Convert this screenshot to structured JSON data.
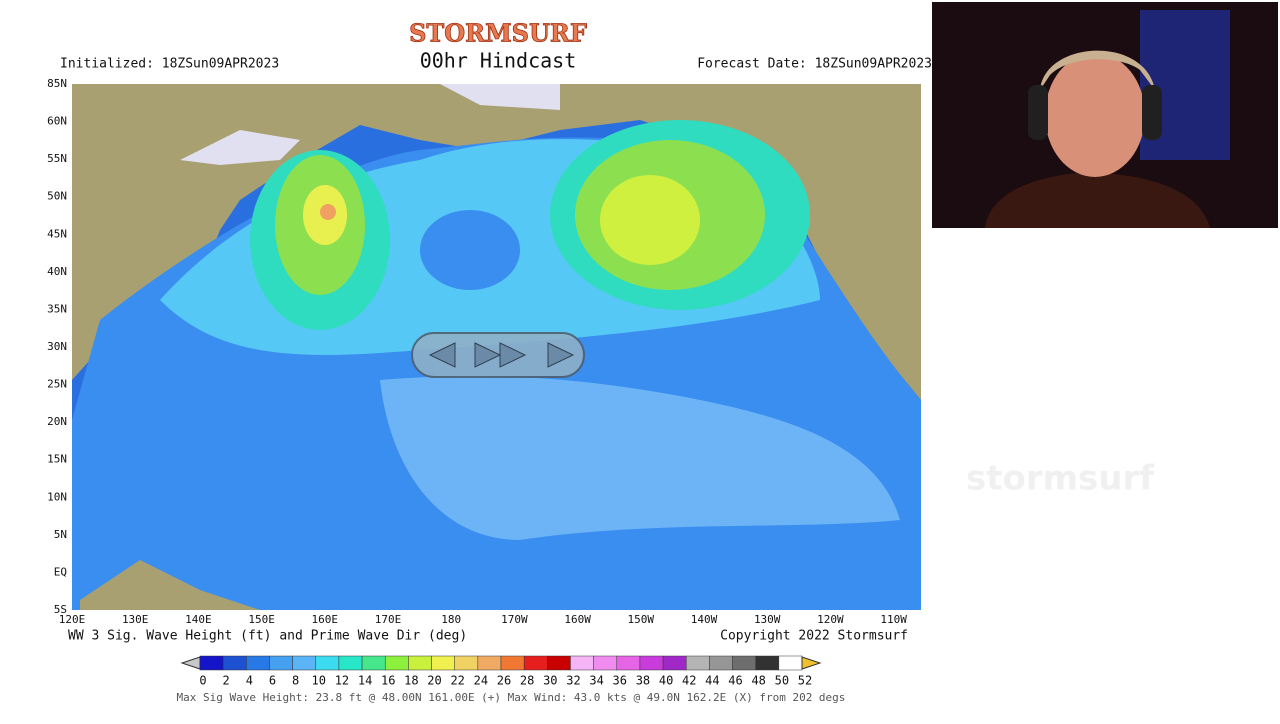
{
  "header": {
    "logo": "STORMSURF",
    "initialized": "Initialized: 18ZSun09APR2023",
    "title": "00hr Hindcast",
    "forecast_date": "Forecast Date: 18ZSun09APR2023"
  },
  "map": {
    "lat_labels": [
      "85N",
      "60N",
      "55N",
      "50N",
      "45N",
      "40N",
      "35N",
      "30N",
      "25N",
      "20N",
      "15N",
      "10N",
      "5N",
      "EQ",
      "5S"
    ],
    "lon_labels": [
      "120E",
      "130E",
      "140E",
      "150E",
      "160E",
      "170E",
      "180",
      "170W",
      "160W",
      "150W",
      "140W",
      "130W",
      "120W",
      "110W"
    ],
    "caption": "WW 3 Sig. Wave Height (ft) and Prime Wave Dir (deg)",
    "copyright": "Copyright 2022 Stormsurf"
  },
  "colorbar": {
    "labels": [
      0,
      2,
      4,
      6,
      8,
      10,
      12,
      14,
      16,
      18,
      20,
      22,
      24,
      26,
      28,
      30,
      32,
      34,
      36,
      38,
      40,
      42,
      44,
      46,
      48,
      50,
      52
    ],
    "colors": [
      "#1414c8",
      "#1e50d2",
      "#2878e6",
      "#46a0f0",
      "#5ab4f5",
      "#3cdcf0",
      "#28e6c8",
      "#46e68c",
      "#8cf03c",
      "#c8f03c",
      "#f0f050",
      "#f0d264",
      "#f0aa64",
      "#f07832",
      "#e61e1e",
      "#c80000",
      "#f5b4f5",
      "#f08cf0",
      "#e664e6",
      "#c83cdc",
      "#a028c8",
      "#b4b4b4",
      "#969696",
      "#6e6e6e",
      "#323232",
      "#ffffff"
    ]
  },
  "footer": {
    "stats": "Max Sig Wave Height: 23.8 ft @ 48.00N 161.00E (+)   Max Wind: 43.0 kts @ 49.0N 162.2E (X) from 202 degs"
  },
  "watermark": "stormsurf"
}
